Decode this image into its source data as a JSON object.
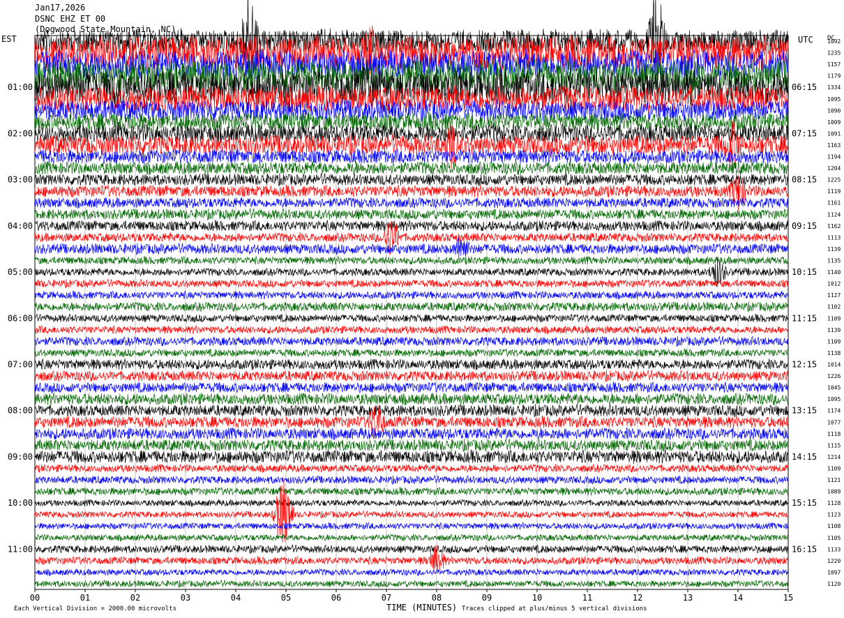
{
  "header": {
    "date": "Jan17,2026",
    "station": "DSNC EHZ ET 00",
    "location": "(Dogwood State Mountain, NC)"
  },
  "zones": {
    "left": "EST",
    "right": "UTC",
    "dc": "DC"
  },
  "footer": {
    "scale_note": "Each Vertical Division = 2000.00 microvolts",
    "clip_note": "Traces clipped at plus/minus 5 vertical divisions",
    "xlabel": "TIME (MINUTES)"
  },
  "chart_data": {
    "type": "line",
    "title": "",
    "xlabel": "TIME (MINUTES)",
    "xlim": [
      0,
      15
    ],
    "x_ticks": [
      "00",
      "01",
      "02",
      "03",
      "04",
      "05",
      "06",
      "07",
      "08",
      "09",
      "10",
      "11",
      "12",
      "13",
      "14",
      "15"
    ],
    "rows_per_hour": 4,
    "row_minutes": 15,
    "row_count": 48,
    "color_cycle": [
      "#000000",
      "#ff0000",
      "#0000ff",
      "#006600"
    ],
    "left_hour_labels": [
      "01:00",
      "02:00",
      "03:00",
      "04:00",
      "05:00",
      "06:00",
      "07:00",
      "08:00",
      "09:00",
      "10:00",
      "11:00"
    ],
    "right_hour_labels": [
      "06:15",
      "07:15",
      "08:15",
      "09:15",
      "10:15",
      "11:15",
      "12:15",
      "13:15",
      "14:15",
      "15:15",
      "16:15"
    ],
    "dc_offsets": [
      1092,
      1235,
      1157,
      1179,
      1334,
      1095,
      1090,
      1009,
      1091,
      1163,
      1194,
      1204,
      1225,
      1119,
      1161,
      1124,
      1162,
      1113,
      1139,
      1135,
      1140,
      1012,
      1127,
      1102,
      1109,
      1139,
      1109,
      1138,
      1014,
      1226,
      1045,
      1095,
      1174,
      1077,
      1118,
      1115,
      1214,
      1109,
      1121,
      1089,
      1128,
      1123,
      1108,
      1105,
      1133,
      1220,
      1097,
      1120
    ],
    "row_amplitude_divisions": [
      1.8,
      2.6,
      2.2,
      2.4,
      2.6,
      2.0,
      1.6,
      1.4,
      1.4,
      1.5,
      1.1,
      1.0,
      0.9,
      0.9,
      0.8,
      0.8,
      0.8,
      0.7,
      0.8,
      0.6,
      0.6,
      0.6,
      0.6,
      0.7,
      0.6,
      0.6,
      0.7,
      0.6,
      0.8,
      0.8,
      0.8,
      0.9,
      0.9,
      0.9,
      0.9,
      0.9,
      1.0,
      0.6,
      0.6,
      0.6,
      0.5,
      0.5,
      0.5,
      0.5,
      0.6,
      0.6,
      0.5,
      0.5
    ],
    "clip_divisions": 5,
    "events": [
      {
        "row": 0,
        "minute": 4.27,
        "amplitude_divisions": 5
      },
      {
        "row": 0,
        "minute": 12.38,
        "amplitude_divisions": 5
      },
      {
        "row": 1,
        "minute": 6.7,
        "amplitude_divisions": 3
      },
      {
        "row": 4,
        "minute": 1.6,
        "amplitude_divisions": 2.5
      },
      {
        "row": 4,
        "minute": 6.6,
        "amplitude_divisions": 2.5
      },
      {
        "row": 9,
        "minute": 8.3,
        "amplitude_divisions": 2.5
      },
      {
        "row": 9,
        "minute": 13.9,
        "amplitude_divisions": 2.5
      },
      {
        "row": 13,
        "minute": 14.0,
        "amplitude_divisions": 2
      },
      {
        "row": 17,
        "minute": 7.1,
        "amplitude_divisions": 2
      },
      {
        "row": 18,
        "minute": 8.5,
        "amplitude_divisions": 1.5
      },
      {
        "row": 20,
        "minute": 13.6,
        "amplitude_divisions": 1.5
      },
      {
        "row": 33,
        "minute": 6.8,
        "amplitude_divisions": 2
      },
      {
        "row": 41,
        "minute": 4.95,
        "amplitude_divisions": 3.5
      },
      {
        "row": 45,
        "minute": 8.0,
        "amplitude_divisions": 1.5
      }
    ]
  }
}
